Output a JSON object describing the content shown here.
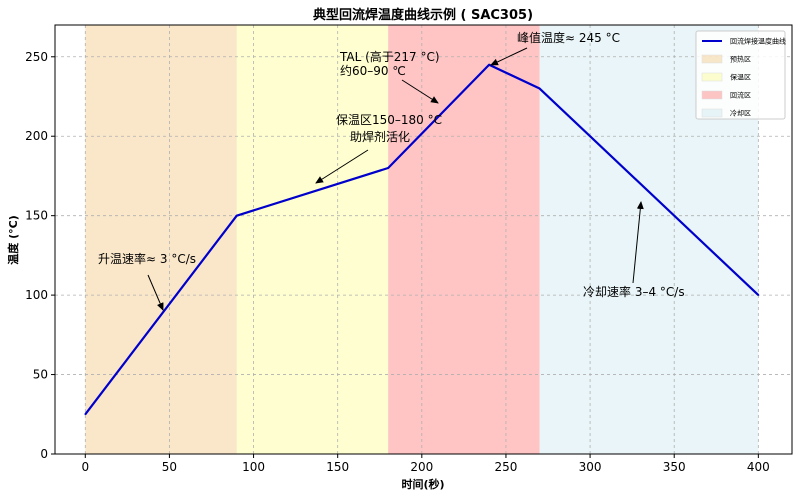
{
  "chart_data": {
    "type": "line",
    "title": "典型回流焊温度曲线示例 ( SAC305)",
    "xlabel": "时间(秒)",
    "ylabel": "温度 (°C)",
    "xlim": [
      -18,
      420
    ],
    "ylim": [
      0,
      270
    ],
    "xticks": [
      0,
      50,
      100,
      150,
      200,
      250,
      300,
      350,
      400
    ],
    "yticks": [
      0,
      50,
      100,
      150,
      200,
      250
    ],
    "grid": true,
    "legend_position": "top-right",
    "series": [
      {
        "name": "回流焊接温度曲线",
        "color": "#0000cc",
        "x": [
          0,
          90,
          180,
          240,
          270,
          400
        ],
        "y": [
          25,
          150,
          180,
          245,
          230,
          100
        ]
      }
    ],
    "regions": [
      {
        "name": "预热区",
        "x0": 0,
        "x1": 90,
        "color": "#f5c98a"
      },
      {
        "name": "保温区",
        "x0": 90,
        "x1": 180,
        "color": "#fdfd96"
      },
      {
        "name": "回流区",
        "x0": 180,
        "x1": 270,
        "color": "#ff7f7f"
      },
      {
        "name": "冷却区",
        "x0": 270,
        "x1": 400,
        "color": "#cfe8ef"
      }
    ],
    "annotations": [
      {
        "id": "ramp",
        "text": "升温速率≈ 3 °C/s",
        "point": [
          45,
          87
        ]
      },
      {
        "id": "soak",
        "lines": [
          "保温区150–180 °C",
          "助焊剂活化"
        ],
        "point": [
          135,
          170
        ]
      },
      {
        "id": "tal",
        "lines": [
          "TAL (高于217 °C)",
          "约60–90 ℃"
        ],
        "point": [
          210,
          220
        ]
      },
      {
        "id": "peak",
        "text": "峰值温度≈ 245 °C",
        "point": [
          240,
          245
        ]
      },
      {
        "id": "cool",
        "text": "冷却速率 3–4 °C/s",
        "point": [
          330,
          160
        ]
      }
    ]
  }
}
